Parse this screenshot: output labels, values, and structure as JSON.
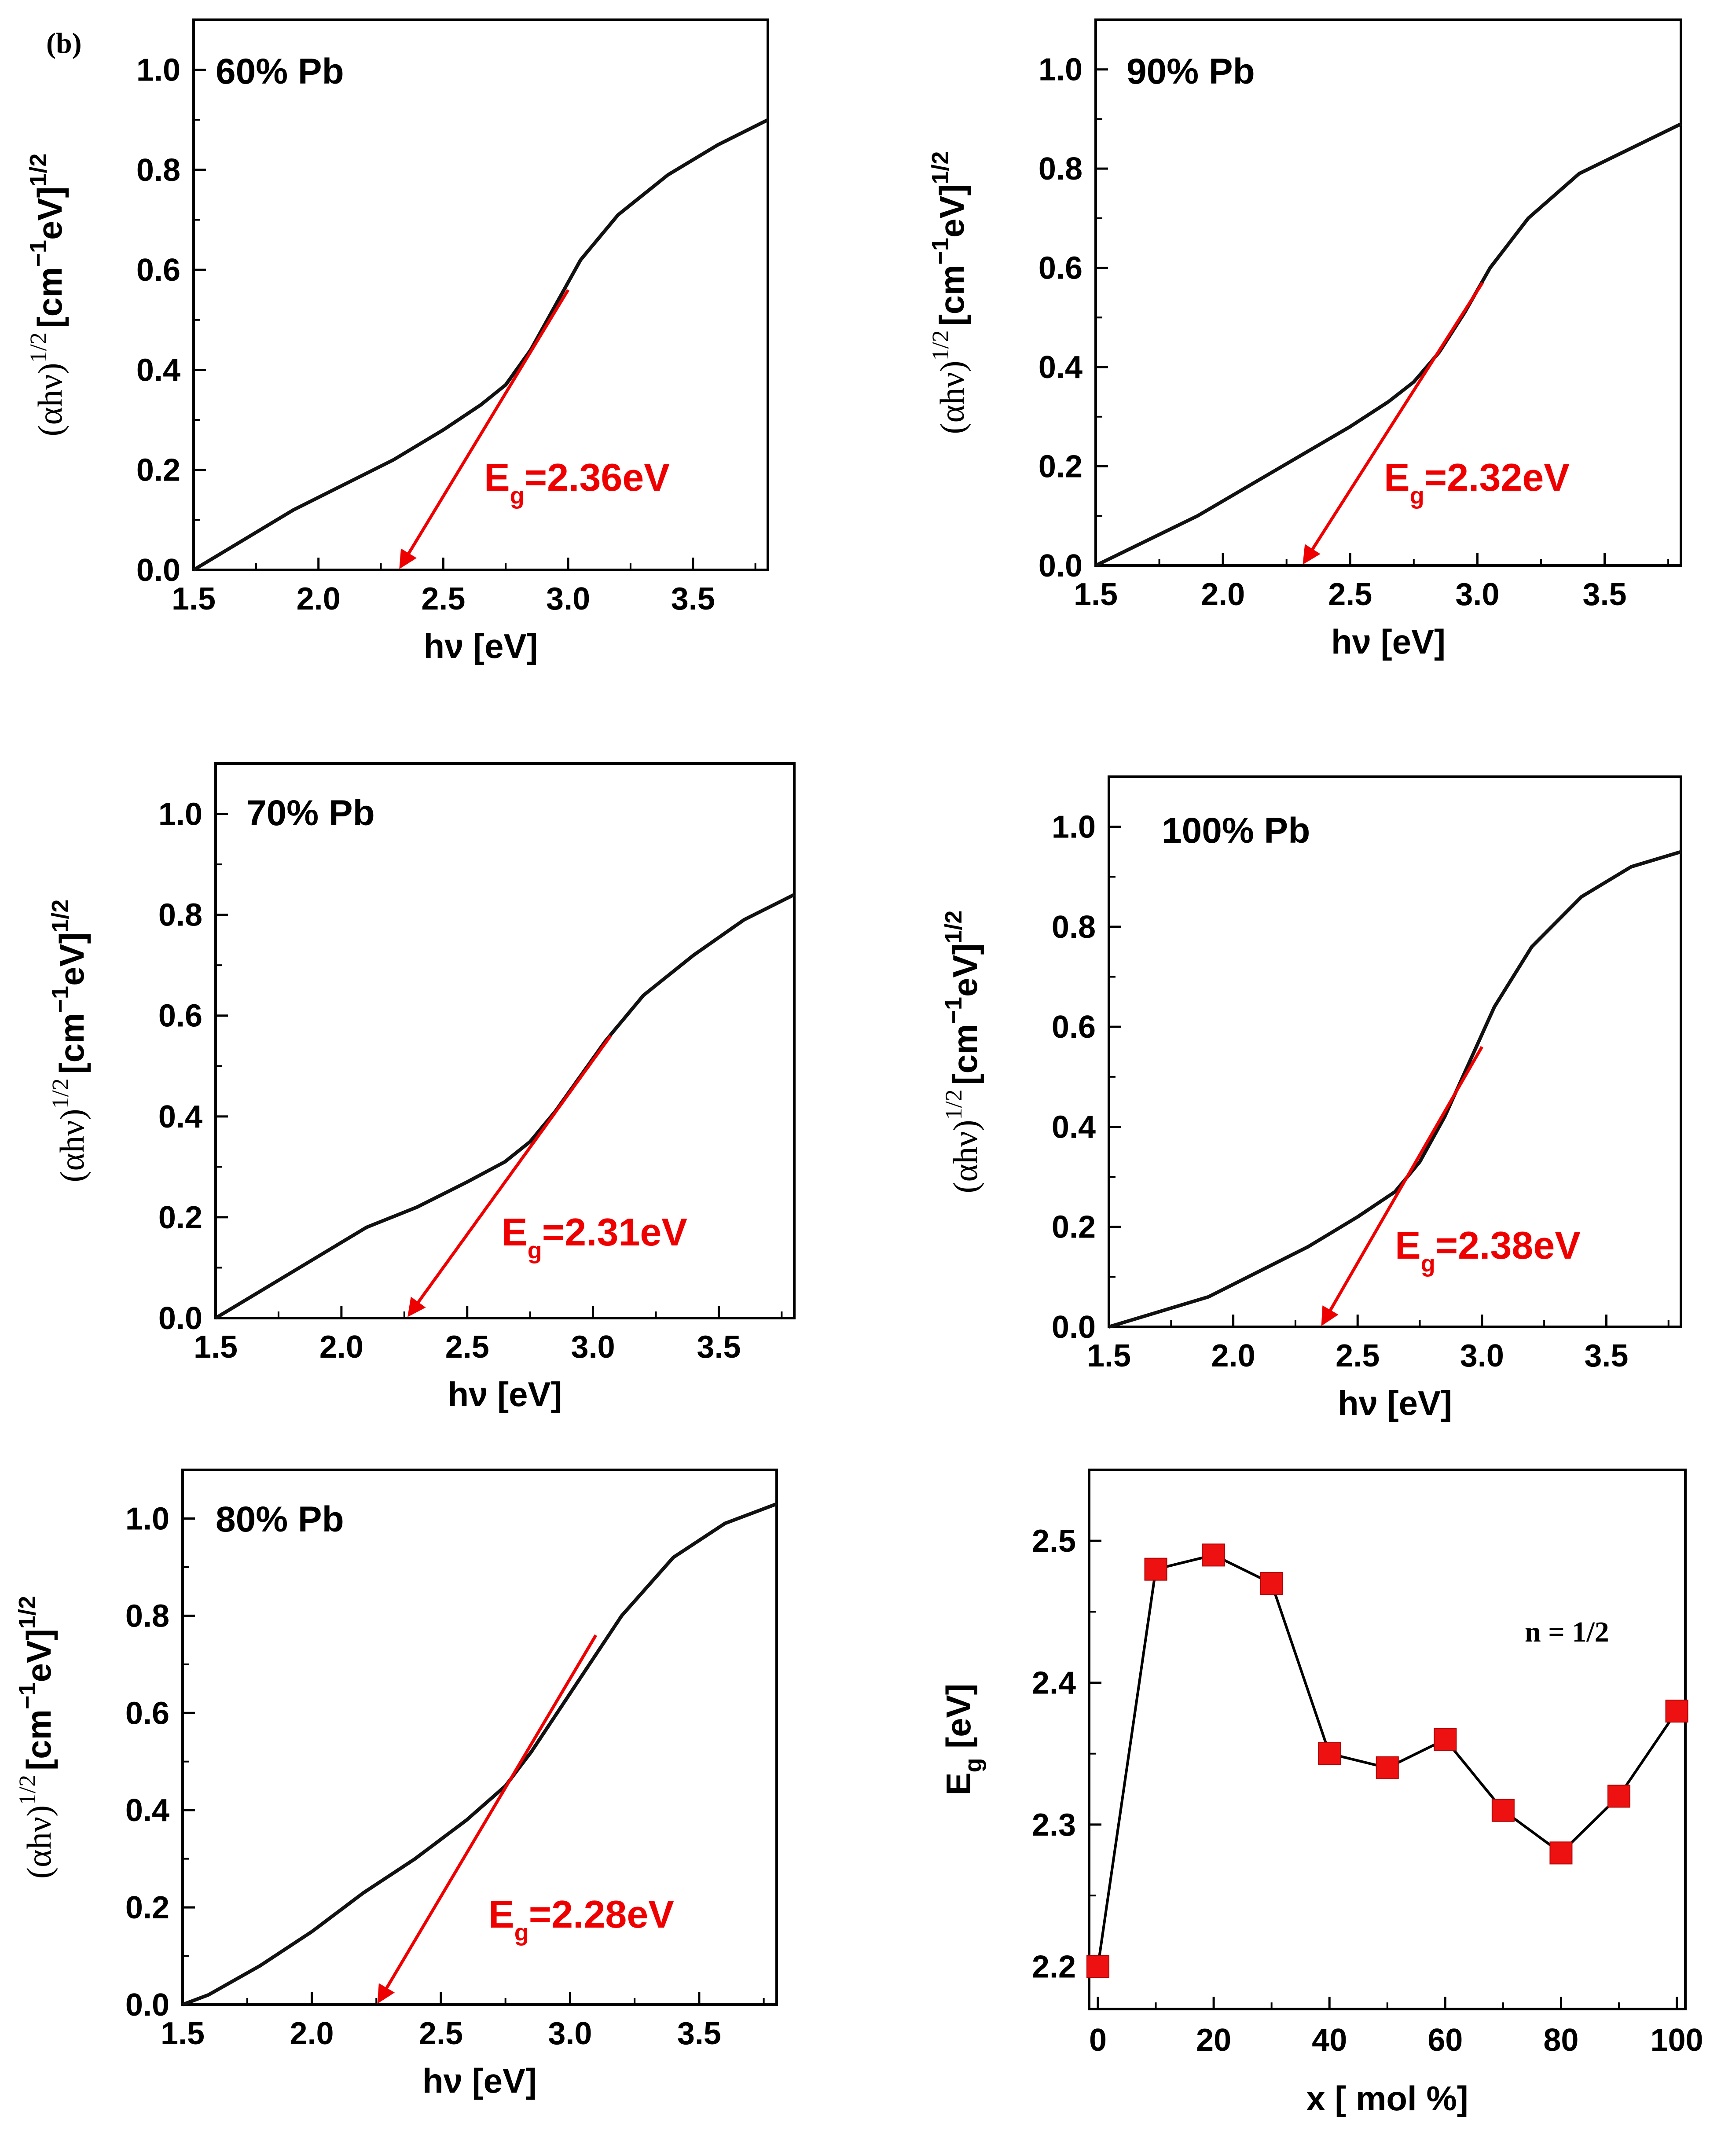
{
  "figure": {
    "panel_label": "(b)"
  },
  "common": {
    "xlabel": "hν [eV]",
    "ylabel_prefix": "(αhν)",
    "ylabel_exp1": "1/2",
    "ylabel_mid": "[cm",
    "ylabel_exp2": "−1",
    "ylabel_unit": "eV]",
    "ylabel_exp3": "1/2",
    "xticks": [
      "1.5",
      "2.0",
      "2.5",
      "3.0",
      "3.5"
    ],
    "yticks": [
      "0.0",
      "0.2",
      "0.4",
      "0.6",
      "0.8",
      "1.0"
    ],
    "eg_letter": "E",
    "eg_sub": "g",
    "curve_color": "#111111",
    "fit_color": "#ee0000"
  },
  "chart_data": [
    {
      "type": "line",
      "title": "60% Pb",
      "eg_value": "=2.36eV",
      "Eg": 2.36,
      "xlabel": "hν [eV]",
      "ylabel": "(αhν)^1/2 [cm^-1 eV]^1/2",
      "xlim": [
        1.5,
        3.8
      ],
      "ylim": [
        0.0,
        1.1
      ],
      "series": [
        {
          "name": "data",
          "x": [
            1.5,
            1.7,
            1.9,
            2.1,
            2.3,
            2.5,
            2.65,
            2.75,
            2.85,
            2.95,
            3.05,
            3.2,
            3.4,
            3.6,
            3.8
          ],
          "y": [
            0.0,
            0.06,
            0.12,
            0.17,
            0.22,
            0.28,
            0.33,
            0.37,
            0.44,
            0.53,
            0.62,
            0.71,
            0.79,
            0.85,
            0.9
          ]
        }
      ],
      "fit_line": {
        "x": [
          2.33,
          3.0
        ],
        "y": [
          0.0,
          0.56
        ]
      }
    },
    {
      "type": "line",
      "title": "90% Pb",
      "eg_value": "=2.32eV",
      "Eg": 2.32,
      "xlabel": "hν [eV]",
      "ylabel": "(αhν)^1/2 [cm^-1 eV]^1/2",
      "xlim": [
        1.5,
        3.8
      ],
      "ylim": [
        0.0,
        1.1
      ],
      "series": [
        {
          "name": "data",
          "x": [
            1.5,
            1.7,
            1.9,
            2.1,
            2.3,
            2.5,
            2.65,
            2.75,
            2.85,
            2.95,
            3.05,
            3.2,
            3.4,
            3.6,
            3.8
          ],
          "y": [
            0.0,
            0.05,
            0.1,
            0.16,
            0.22,
            0.28,
            0.33,
            0.37,
            0.43,
            0.51,
            0.6,
            0.7,
            0.79,
            0.84,
            0.89
          ]
        }
      ],
      "fit_line": {
        "x": [
          2.32,
          3.02
        ],
        "y": [
          0.0,
          0.57
        ]
      }
    },
    {
      "type": "line",
      "title": "70% Pb",
      "eg_value": "=2.31eV",
      "Eg": 2.31,
      "xlabel": "hν [eV]",
      "ylabel": "(αhν)^1/2 [cm^-1 eV]^1/2",
      "xlim": [
        1.5,
        3.8
      ],
      "ylim": [
        0.0,
        1.1
      ],
      "series": [
        {
          "name": "data",
          "x": [
            1.5,
            1.7,
            1.9,
            2.1,
            2.3,
            2.5,
            2.65,
            2.75,
            2.85,
            2.95,
            3.05,
            3.2,
            3.4,
            3.6,
            3.8
          ],
          "y": [
            0.0,
            0.06,
            0.12,
            0.18,
            0.22,
            0.27,
            0.31,
            0.35,
            0.41,
            0.48,
            0.55,
            0.64,
            0.72,
            0.79,
            0.84
          ]
        }
      ],
      "fit_line": {
        "x": [
          2.27,
          3.07
        ],
        "y": [
          0.0,
          0.56
        ]
      }
    },
    {
      "type": "line",
      "title": "100% Pb",
      "eg_value": "=2.38eV",
      "Eg": 2.38,
      "xlabel": "hν [eV]",
      "ylabel": "(αhν)^1/2 [cm^-1 eV]^1/2",
      "xlim": [
        1.5,
        3.8
      ],
      "ylim": [
        0.0,
        1.1
      ],
      "series": [
        {
          "name": "data",
          "x": [
            1.5,
            1.7,
            1.9,
            2.1,
            2.3,
            2.5,
            2.65,
            2.75,
            2.85,
            2.95,
            3.05,
            3.2,
            3.4,
            3.6,
            3.8
          ],
          "y": [
            0.0,
            0.03,
            0.06,
            0.11,
            0.16,
            0.22,
            0.27,
            0.33,
            0.42,
            0.53,
            0.64,
            0.76,
            0.86,
            0.92,
            0.95
          ]
        }
      ],
      "fit_line": {
        "x": [
          2.36,
          3.0
        ],
        "y": [
          0.0,
          0.56
        ]
      }
    },
    {
      "type": "line",
      "title": "80% Pb",
      "eg_value": "=2.28eV",
      "Eg": 2.28,
      "xlabel": "hν [eV]",
      "ylabel": "(αhν)^1/2 [cm^-1 eV]^1/2",
      "xlim": [
        1.5,
        3.8
      ],
      "ylim": [
        0.0,
        1.1
      ],
      "series": [
        {
          "name": "data",
          "x": [
            1.5,
            1.6,
            1.8,
            2.0,
            2.2,
            2.4,
            2.6,
            2.75,
            2.85,
            3.0,
            3.2,
            3.4,
            3.6,
            3.8
          ],
          "y": [
            0.0,
            0.02,
            0.08,
            0.15,
            0.23,
            0.3,
            0.38,
            0.45,
            0.52,
            0.64,
            0.8,
            0.92,
            0.99,
            1.03
          ]
        }
      ],
      "fit_line": {
        "x": [
          2.26,
          3.1
        ],
        "y": [
          0.0,
          0.76
        ]
      }
    },
    {
      "type": "line",
      "title": "",
      "annotation": "n = 1/2",
      "xlabel": "x [ mol %]",
      "ylabel": "Eg [eV]",
      "ylabel_main": "E",
      "ylabel_sub": "g",
      "ylabel_unit": " [eV]",
      "xlim": [
        0,
        103
      ],
      "ylim": [
        2.17,
        2.55
      ],
      "xticks": [
        "0",
        "20",
        "40",
        "60",
        "80",
        "100"
      ],
      "yticks": [
        "2.2",
        "2.3",
        "2.4",
        "2.5"
      ],
      "marker_color": "#ee1111",
      "series": [
        {
          "name": "Eg",
          "x": [
            0,
            10,
            20,
            30,
            40,
            50,
            60,
            70,
            80,
            90,
            100
          ],
          "y": [
            2.2,
            2.48,
            2.49,
            2.47,
            2.35,
            2.34,
            2.36,
            2.31,
            2.28,
            2.32,
            2.38
          ]
        }
      ]
    }
  ]
}
